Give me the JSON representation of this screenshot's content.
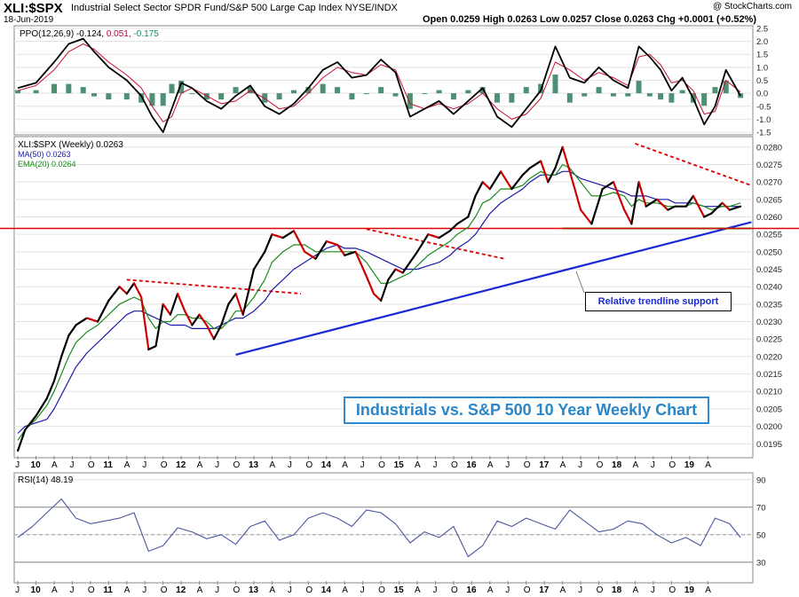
{
  "header": {
    "symbol": "XLI:$SPX",
    "description": "Industrial Select Sector SPDR Fund/S&P 500 Large Cap Index NYSE/INDX",
    "date": "18-Jun-2019",
    "watermark": "@ StockCharts.com",
    "quote": "Open 0.0259  High 0.0263  Low 0.0257  Close 0.0263  Chg +0.0001 (+0.52%)"
  },
  "x_axis": {
    "labels": [
      "J",
      "10",
      "A",
      "J",
      "O",
      "11",
      "A",
      "J",
      "O",
      "12",
      "A",
      "J",
      "O",
      "13",
      "A",
      "J",
      "O",
      "14",
      "A",
      "J",
      "O",
      "15",
      "A",
      "J",
      "O",
      "16",
      "A",
      "J",
      "O",
      "17",
      "A",
      "J",
      "O",
      "18",
      "A",
      "J",
      "O",
      "19",
      "A"
    ],
    "year_labels": [
      "10",
      "11",
      "12",
      "13",
      "14",
      "15",
      "16",
      "17",
      "18",
      "19"
    ]
  },
  "annotations": {
    "title": "Industrials vs. S&P 500 10 Year Weekly Chart",
    "trendline_note": "Relative trendline support"
  },
  "colors": {
    "price_down": "#cc0000",
    "price_up": "#000000",
    "ma50": "#1a1aa8",
    "ema20": "#1a8a1a",
    "trendline": "#1a2bd6",
    "resistance": "#e00000",
    "support": "#1aa01a",
    "ppo_line": "#000000",
    "ppo_signal": "#c8102e",
    "ppo_hist": "#2e7d5a",
    "rsi_line": "#4a58a0"
  },
  "chart_data": [
    {
      "type": "line",
      "title": "PPO(12,26,9)",
      "legend": [
        {
          "name": "PPO(12,26,9)",
          "value": "-0.124"
        },
        {
          "name": "signal",
          "value": "0.051"
        },
        {
          "name": "histogram",
          "value": "-0.175"
        }
      ],
      "ylim": [
        -1.6,
        2.6
      ],
      "ticks": [
        "2.5",
        "2.0",
        "1.5",
        "1.0",
        "0.5",
        "0.0",
        "-0.5",
        "-1.0",
        "-1.5"
      ],
      "x": [
        2009.5,
        2009.75,
        2010.0,
        2010.2,
        2010.4,
        2010.55,
        2010.75,
        2011.0,
        2011.2,
        2011.35,
        2011.5,
        2011.62,
        2011.75,
        2011.9,
        2012.1,
        2012.3,
        2012.5,
        2012.7,
        2012.9,
        2013.1,
        2013.3,
        2013.5,
        2013.7,
        2013.9,
        2014.1,
        2014.3,
        2014.5,
        2014.7,
        2014.9,
        2015.1,
        2015.3,
        2015.5,
        2015.7,
        2015.9,
        2016.1,
        2016.3,
        2016.5,
        2016.7,
        2016.9,
        2017.1,
        2017.3,
        2017.5,
        2017.7,
        2017.9,
        2018.05,
        2018.2,
        2018.35,
        2018.5,
        2018.65,
        2018.8,
        2018.95,
        2019.1,
        2019.25,
        2019.45
      ],
      "series": [
        {
          "values": [
            0.2,
            0.4,
            1.2,
            1.9,
            2.1,
            1.6,
            1.0,
            0.5,
            -0.1,
            -0.9,
            -1.5,
            -0.6,
            0.4,
            0.2,
            -0.3,
            -0.6,
            -0.1,
            0.3,
            -0.5,
            -0.8,
            -0.4,
            0.2,
            0.9,
            1.2,
            0.6,
            0.7,
            1.3,
            0.8,
            -0.9,
            -0.6,
            -0.3,
            -0.8,
            -0.3,
            0.2,
            -0.9,
            -1.3,
            -0.6,
            0.1,
            1.8,
            0.6,
            0.4,
            1.0,
            0.5,
            0.2,
            1.8,
            1.4,
            0.9,
            0.1,
            0.6,
            -0.2,
            -1.2,
            -0.5,
            0.9,
            -0.1
          ]
        },
        {
          "values": [
            0.1,
            0.3,
            0.9,
            1.6,
            1.9,
            1.7,
            1.2,
            0.7,
            0.2,
            -0.5,
            -1.1,
            -0.9,
            0.0,
            0.2,
            -0.1,
            -0.4,
            -0.3,
            0.1,
            -0.2,
            -0.6,
            -0.5,
            0.0,
            0.6,
            1.0,
            0.8,
            0.7,
            1.1,
            0.9,
            -0.4,
            -0.6,
            -0.4,
            -0.6,
            -0.4,
            0.0,
            -0.6,
            -1.0,
            -0.8,
            -0.2,
            1.2,
            0.9,
            0.5,
            0.8,
            0.6,
            0.3,
            1.4,
            1.5,
            1.1,
            0.4,
            0.5,
            0.1,
            -0.8,
            -0.7,
            0.5,
            0.05
          ]
        }
      ]
    },
    {
      "type": "line",
      "title": "XLI:$SPX (Weekly) 0.0263",
      "legend": [
        {
          "name": "XLI:$SPX (Weekly)",
          "value": "0.0263"
        },
        {
          "name": "MA(50)",
          "value": "0.0263"
        },
        {
          "name": "EMA(20)",
          "value": "0.0264"
        }
      ],
      "ylim": [
        0.0191,
        0.0283
      ],
      "ticks": [
        "0.0280",
        "0.0275",
        "0.0270",
        "0.0265",
        "0.0260",
        "0.0255",
        "0.0250",
        "0.0245",
        "0.0240",
        "0.0235",
        "0.0230",
        "0.0225",
        "0.0220",
        "0.0215",
        "0.0210",
        "0.0205",
        "0.0200",
        "0.0195"
      ],
      "x": [
        2009.5,
        2009.6,
        2009.75,
        2009.9,
        2010.0,
        2010.1,
        2010.2,
        2010.3,
        2010.45,
        2010.6,
        2010.75,
        2010.9,
        2011.0,
        2011.1,
        2011.2,
        2011.3,
        2011.4,
        2011.5,
        2011.6,
        2011.7,
        2011.8,
        2011.9,
        2012.0,
        2012.1,
        2012.2,
        2012.3,
        2012.4,
        2012.5,
        2012.6,
        2012.75,
        2012.9,
        2013.0,
        2013.15,
        2013.3,
        2013.45,
        2013.6,
        2013.75,
        2013.9,
        2014.0,
        2014.15,
        2014.3,
        2014.4,
        2014.5,
        2014.6,
        2014.7,
        2014.8,
        2014.9,
        2015.0,
        2015.15,
        2015.3,
        2015.45,
        2015.55,
        2015.7,
        2015.8,
        2015.9,
        2016.0,
        2016.15,
        2016.3,
        2016.45,
        2016.55,
        2016.7,
        2016.8,
        2016.9,
        2017.0,
        2017.1,
        2017.25,
        2017.4,
        2017.55,
        2017.7,
        2017.85,
        2017.95,
        2018.05,
        2018.15,
        2018.3,
        2018.45,
        2018.55,
        2018.7,
        2018.8,
        2018.95,
        2019.05,
        2019.2,
        2019.3,
        2019.45
      ],
      "series": [
        {
          "name": "XLI:$SPX (Weekly)",
          "values": [
            0.0193,
            0.0199,
            0.0203,
            0.0208,
            0.0213,
            0.022,
            0.0226,
            0.0229,
            0.0231,
            0.023,
            0.0236,
            0.024,
            0.0238,
            0.0241,
            0.0237,
            0.0222,
            0.0223,
            0.0235,
            0.0232,
            0.0238,
            0.0233,
            0.0229,
            0.0232,
            0.0229,
            0.0225,
            0.0229,
            0.0235,
            0.0238,
            0.0232,
            0.0245,
            0.025,
            0.0255,
            0.0254,
            0.0256,
            0.025,
            0.0248,
            0.0253,
            0.0252,
            0.0249,
            0.025,
            0.0243,
            0.0238,
            0.0236,
            0.0242,
            0.0245,
            0.0244,
            0.0247,
            0.025,
            0.0255,
            0.0254,
            0.0256,
            0.0258,
            0.026,
            0.0266,
            0.027,
            0.0268,
            0.0273,
            0.0268,
            0.0272,
            0.0274,
            0.0276,
            0.027,
            0.0274,
            0.028,
            0.0273,
            0.0262,
            0.0258,
            0.0268,
            0.027,
            0.0262,
            0.0258,
            0.027,
            0.0263,
            0.0265,
            0.0262,
            0.0263,
            0.0263,
            0.0266,
            0.026,
            0.0261,
            0.0264,
            0.0262,
            0.0263
          ]
        },
        {
          "name": "MA(50)",
          "values": [
            0.0198,
            0.02,
            0.0201,
            0.0202,
            0.0205,
            0.0209,
            0.0213,
            0.0217,
            0.0221,
            0.0224,
            0.0227,
            0.023,
            0.0232,
            0.0233,
            0.0233,
            0.0232,
            0.0231,
            0.023,
            0.0229,
            0.0229,
            0.0229,
            0.0228,
            0.0228,
            0.0228,
            0.0228,
            0.0229,
            0.023,
            0.0231,
            0.0231,
            0.0233,
            0.0236,
            0.0239,
            0.0242,
            0.0245,
            0.0247,
            0.0249,
            0.0251,
            0.0252,
            0.0251,
            0.0251,
            0.025,
            0.0249,
            0.0248,
            0.0247,
            0.0246,
            0.0245,
            0.0245,
            0.0245,
            0.0246,
            0.0247,
            0.0249,
            0.0251,
            0.0253,
            0.0255,
            0.0258,
            0.0261,
            0.0264,
            0.0266,
            0.0268,
            0.027,
            0.0272,
            0.0272,
            0.0272,
            0.0273,
            0.0273,
            0.0271,
            0.027,
            0.0269,
            0.0268,
            0.0267,
            0.0266,
            0.0266,
            0.0266,
            0.0265,
            0.0265,
            0.0264,
            0.0264,
            0.0264,
            0.0263,
            0.0263,
            0.0263,
            0.0263,
            0.0263
          ]
        },
        {
          "name": "EMA(20)",
          "values": [
            0.0196,
            0.0199,
            0.0202,
            0.0206,
            0.021,
            0.0215,
            0.022,
            0.0224,
            0.0227,
            0.0229,
            0.0232,
            0.0235,
            0.0236,
            0.0237,
            0.0236,
            0.0231,
            0.0228,
            0.023,
            0.023,
            0.0232,
            0.0232,
            0.0231,
            0.0231,
            0.023,
            0.0228,
            0.0228,
            0.023,
            0.0233,
            0.0233,
            0.0237,
            0.0242,
            0.0247,
            0.025,
            0.0252,
            0.0252,
            0.025,
            0.025,
            0.025,
            0.025,
            0.025,
            0.0247,
            0.0244,
            0.0241,
            0.0241,
            0.0242,
            0.0243,
            0.0244,
            0.0246,
            0.0249,
            0.0251,
            0.0253,
            0.0255,
            0.0257,
            0.026,
            0.0264,
            0.0265,
            0.0268,
            0.0268,
            0.0269,
            0.0271,
            0.0273,
            0.0272,
            0.0272,
            0.0275,
            0.0274,
            0.027,
            0.0266,
            0.0266,
            0.0267,
            0.0266,
            0.0263,
            0.0265,
            0.0264,
            0.0264,
            0.0263,
            0.0263,
            0.0263,
            0.0264,
            0.0263,
            0.0262,
            0.0263,
            0.0263,
            0.0264
          ]
        }
      ],
      "lines": [
        {
          "kind": "trendline",
          "x": [
            2012.5,
            2019.6
          ],
          "y": [
            0.02205,
            0.02585
          ]
        },
        {
          "kind": "support",
          "x": [
            2017.0,
            2019.6
          ],
          "y": [
            0.02567,
            0.02567
          ]
        },
        {
          "kind": "horizontal",
          "x": [
            2009.5,
            2019.6
          ],
          "y": [
            0.02567,
            0.02567
          ]
        },
        {
          "kind": "resistance",
          "x": [
            2011.0,
            2013.4
          ],
          "y": [
            0.0242,
            0.0238
          ]
        },
        {
          "kind": "resistance",
          "x": [
            2014.3,
            2016.2
          ],
          "y": [
            0.02565,
            0.0248
          ]
        },
        {
          "kind": "resistance",
          "x": [
            2018.0,
            2019.6
          ],
          "y": [
            0.0281,
            0.0269
          ]
        }
      ]
    },
    {
      "type": "line",
      "title": "RSI(14)",
      "legend": [
        {
          "name": "RSI(14)",
          "value": "48.19"
        }
      ],
      "ylim": [
        15,
        95
      ],
      "ticks": [
        "90",
        "70",
        "50",
        "30"
      ],
      "x": [
        2009.5,
        2009.7,
        2009.9,
        2010.1,
        2010.3,
        2010.5,
        2010.7,
        2010.9,
        2011.1,
        2011.3,
        2011.5,
        2011.7,
        2011.9,
        2012.1,
        2012.3,
        2012.5,
        2012.7,
        2012.9,
        2013.1,
        2013.3,
        2013.5,
        2013.7,
        2013.9,
        2014.1,
        2014.3,
        2014.5,
        2014.7,
        2014.9,
        2015.1,
        2015.3,
        2015.5,
        2015.7,
        2015.9,
        2016.1,
        2016.3,
        2016.5,
        2016.7,
        2016.9,
        2017.1,
        2017.3,
        2017.5,
        2017.7,
        2017.9,
        2018.1,
        2018.3,
        2018.5,
        2018.7,
        2018.9,
        2019.1,
        2019.3,
        2019.45
      ],
      "series": [
        {
          "name": "RSI(14)",
          "values": [
            48,
            56,
            66,
            76,
            62,
            58,
            60,
            62,
            66,
            38,
            42,
            55,
            52,
            47,
            50,
            43,
            56,
            60,
            46,
            50,
            62,
            66,
            62,
            56,
            68,
            66,
            58,
            44,
            52,
            48,
            56,
            34,
            42,
            60,
            56,
            62,
            58,
            54,
            68,
            60,
            52,
            54,
            60,
            58,
            50,
            44,
            48,
            42,
            62,
            58,
            48
          ]
        }
      ]
    }
  ]
}
